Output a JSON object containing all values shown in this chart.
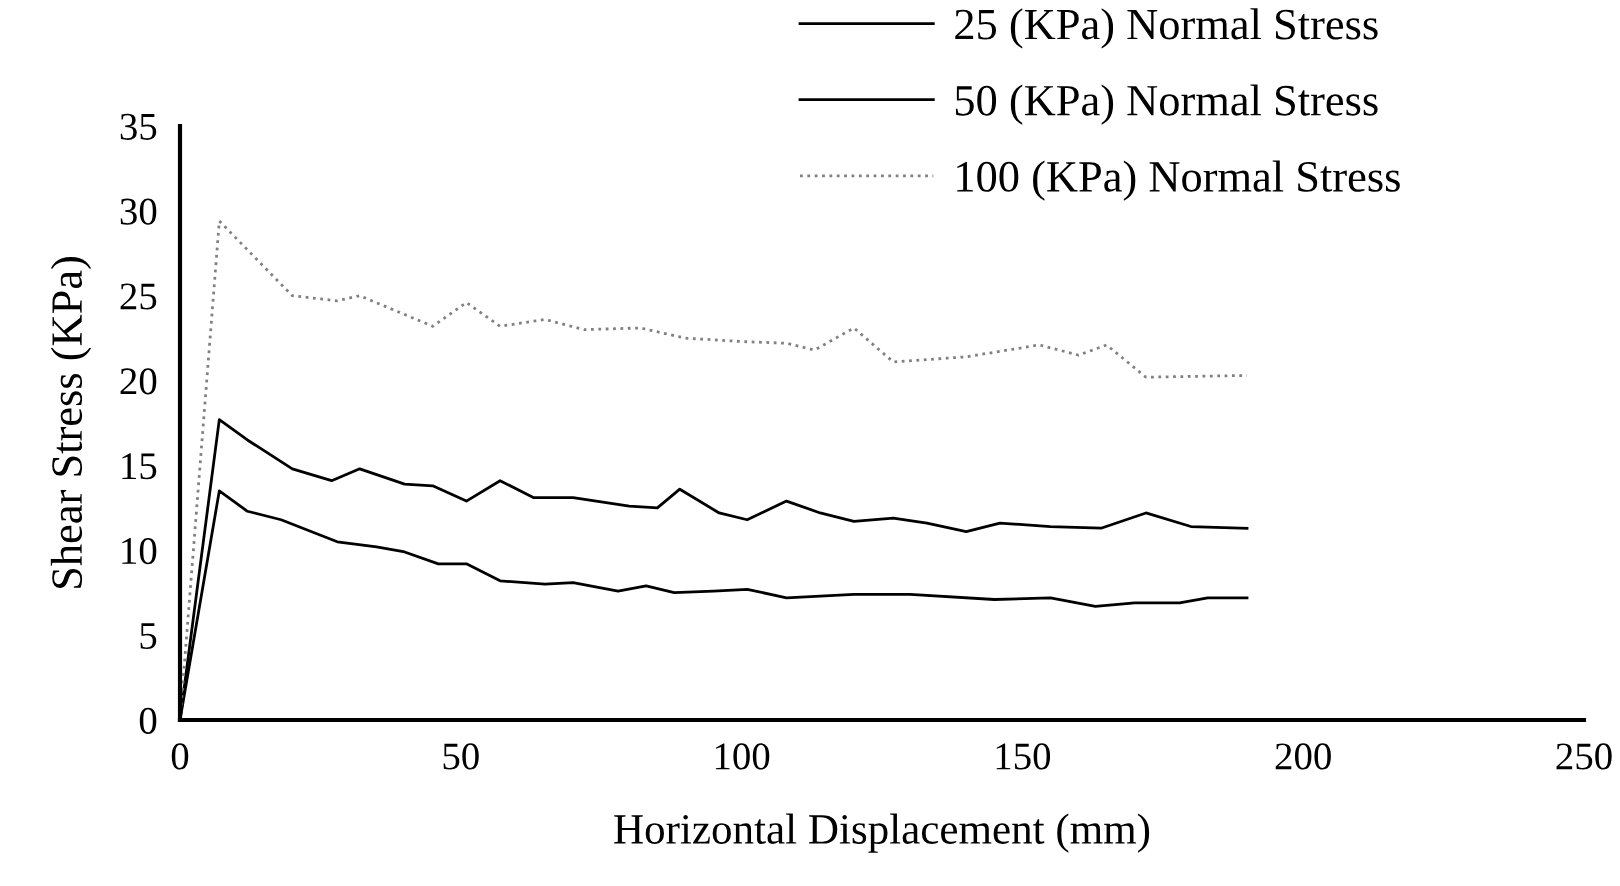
{
  "chart_data": {
    "type": "line",
    "xlabel": "Horizontal Displacement (mm)",
    "ylabel": "Shear Stress (KPa)",
    "xlim": [
      0,
      250
    ],
    "xticks": [
      0,
      50,
      100,
      150,
      200,
      250
    ],
    "ylim": [
      0,
      35
    ],
    "yticks": [
      0,
      5,
      10,
      15,
      20,
      25,
      30,
      35
    ],
    "grid": false,
    "legend": "top right",
    "marker": "none",
    "series": [
      {
        "name": "25 (KPa) Normal Stress",
        "color": "#000000",
        "line_style": "solid",
        "x": [
          0,
          7,
          12,
          18,
          28,
          35,
          40,
          46,
          51,
          57,
          65,
          70,
          78,
          83,
          88,
          95,
          101,
          108,
          120,
          130,
          145,
          155,
          163,
          170,
          178,
          183,
          190
        ],
        "values": [
          0,
          13.5,
          12.3,
          11.8,
          10.5,
          10.2,
          9.9,
          9.2,
          9.2,
          8.2,
          8.0,
          8.1,
          7.6,
          7.9,
          7.5,
          7.6,
          7.7,
          7.2,
          7.4,
          7.4,
          7.1,
          7.2,
          6.7,
          6.9,
          6.9,
          7.2,
          7.2
        ]
      },
      {
        "name": "50 (KPa) Normal Stress",
        "color": "#000000",
        "line_style": "solid",
        "x": [
          0,
          7,
          12,
          20,
          27,
          32,
          40,
          45,
          51,
          57,
          63,
          70,
          80,
          85,
          89,
          96,
          101,
          108,
          114,
          120,
          127,
          133,
          140,
          146,
          155,
          164,
          172,
          180,
          190
        ],
        "values": [
          0,
          17.7,
          16.5,
          14.8,
          14.1,
          14.8,
          13.9,
          13.8,
          12.9,
          14.1,
          13.1,
          13.1,
          12.6,
          12.5,
          13.6,
          12.2,
          11.8,
          12.9,
          12.2,
          11.7,
          11.9,
          11.6,
          11.1,
          11.6,
          11.4,
          11.3,
          12.2,
          11.4,
          11.3
        ]
      },
      {
        "name": "100 (KPa) Normal Stress",
        "color": "#808080",
        "line_style": "dotted",
        "x": [
          0,
          7,
          20,
          28,
          32,
          45,
          51,
          57,
          65,
          72,
          82,
          90,
          100,
          108,
          113,
          120,
          127,
          140,
          153,
          160,
          165,
          172,
          190
        ],
        "values": [
          0,
          29.4,
          25.0,
          24.7,
          25.0,
          23.2,
          24.6,
          23.2,
          23.6,
          23.0,
          23.1,
          22.5,
          22.3,
          22.2,
          21.8,
          23.1,
          21.1,
          21.4,
          22.1,
          21.5,
          22.1,
          20.2,
          20.3
        ]
      }
    ]
  }
}
